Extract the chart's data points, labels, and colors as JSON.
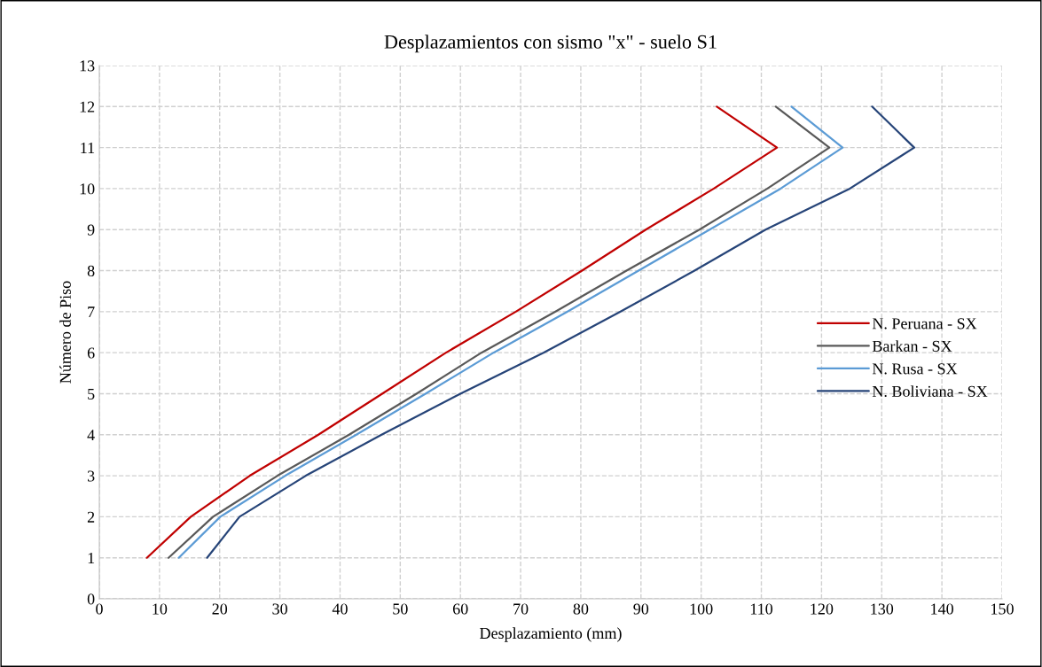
{
  "chart_data": {
    "type": "line",
    "title": "Desplazamientos con sismo \"x\" - suelo S1",
    "xlabel": "Desplazamiento (mm)",
    "ylabel": "Número de Piso",
    "xlim": [
      0,
      150
    ],
    "xticks": [
      0,
      10,
      20,
      30,
      40,
      50,
      60,
      70,
      80,
      90,
      100,
      110,
      120,
      130,
      140,
      150
    ],
    "ylim": [
      0,
      13
    ],
    "yticks": [
      0,
      1,
      2,
      3,
      4,
      5,
      6,
      7,
      8,
      9,
      10,
      11,
      12,
      13
    ],
    "grid": true,
    "legend": "right",
    "line_style": "solid",
    "marker": "none",
    "series": [
      {
        "name": "N. Peruana - SX",
        "color": "#c00000",
        "x": [
          7.9,
          15.2,
          25.0,
          36.4,
          47.0,
          57.6,
          69.2,
          80.2,
          90.8,
          102.1,
          112.6,
          102.6
        ],
        "values": [
          1,
          2,
          3,
          4,
          5,
          6,
          7,
          8,
          9,
          10,
          11,
          12
        ]
      },
      {
        "name": "Barkan - SX",
        "color": "#595959",
        "x": [
          11.5,
          18.9,
          29.6,
          41.5,
          52.7,
          63.5,
          75.8,
          87.6,
          99.7,
          111.0,
          121.3,
          112.4
        ],
        "values": [
          1,
          2,
          3,
          4,
          5,
          6,
          7,
          8,
          9,
          10,
          11,
          12
        ]
      },
      {
        "name": "N. Rusa - SX",
        "color": "#5b9bd5",
        "x": [
          13.2,
          20.1,
          30.9,
          42.7,
          54.2,
          65.5,
          77.8,
          89.6,
          101.4,
          113.2,
          123.5,
          115.0
        ],
        "values": [
          1,
          2,
          3,
          4,
          5,
          6,
          7,
          8,
          9,
          10,
          11,
          12
        ]
      },
      {
        "name": "N. Boliviana - SX",
        "color": "#264478",
        "x": [
          17.9,
          23.3,
          34.3,
          46.9,
          60.0,
          73.8,
          86.6,
          98.9,
          110.7,
          124.7,
          135.4,
          128.4
        ],
        "values": [
          1,
          2,
          3,
          4,
          5,
          6,
          7,
          8,
          9,
          10,
          11,
          12
        ]
      }
    ]
  }
}
